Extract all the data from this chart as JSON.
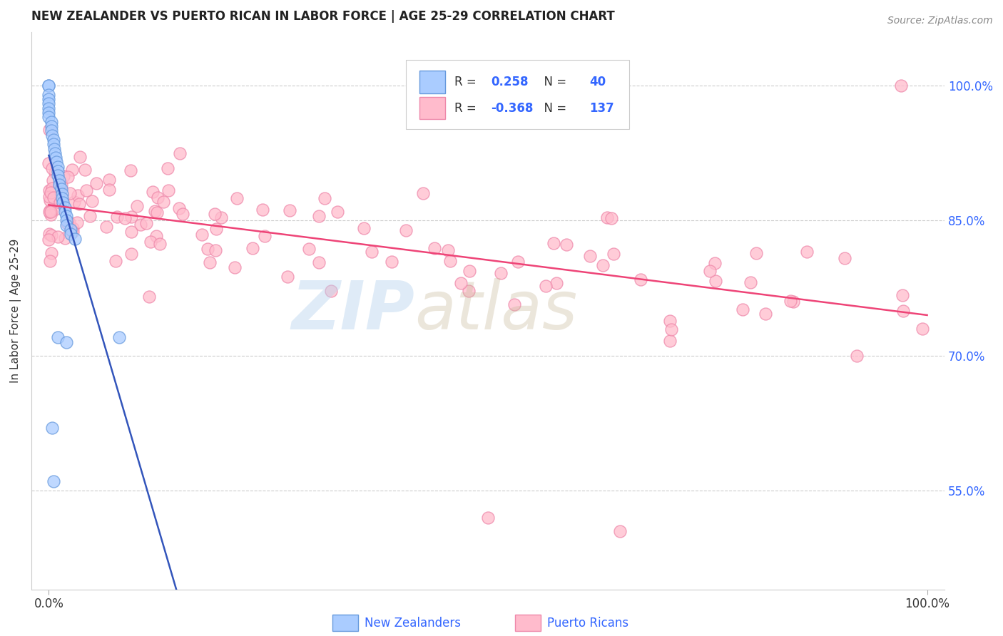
{
  "title": "NEW ZEALANDER VS PUERTO RICAN IN LABOR FORCE | AGE 25-29 CORRELATION CHART",
  "source_text": "Source: ZipAtlas.com",
  "ylabel": "In Labor Force | Age 25-29",
  "xlim": [
    -0.02,
    1.02
  ],
  "ylim": [
    0.44,
    1.06
  ],
  "xtick_labels": [
    "0.0%",
    "100.0%"
  ],
  "xtick_positions": [
    0.0,
    1.0
  ],
  "ytick_labels": [
    "55.0%",
    "70.0%",
    "85.0%",
    "100.0%"
  ],
  "ytick_positions": [
    0.55,
    0.7,
    0.85,
    1.0
  ],
  "background_color": "#ffffff",
  "grid_color": "#cccccc",
  "nz_face_color": "#aaccff",
  "nz_edge_color": "#6699dd",
  "pr_face_color": "#ffbbcc",
  "pr_edge_color": "#ee88aa",
  "nz_line_color": "#3355bb",
  "pr_line_color": "#ee4477",
  "ytick_color": "#3366ff",
  "xtick_color": "#333333",
  "legend_nz_label": "New Zealanders",
  "legend_pr_label": "Puerto Ricans",
  "R_nz": "0.258",
  "N_nz": "40",
  "R_pr": "-0.368",
  "N_pr": "137",
  "title_color": "#222222",
  "source_color": "#888888",
  "ylabel_color": "#333333"
}
